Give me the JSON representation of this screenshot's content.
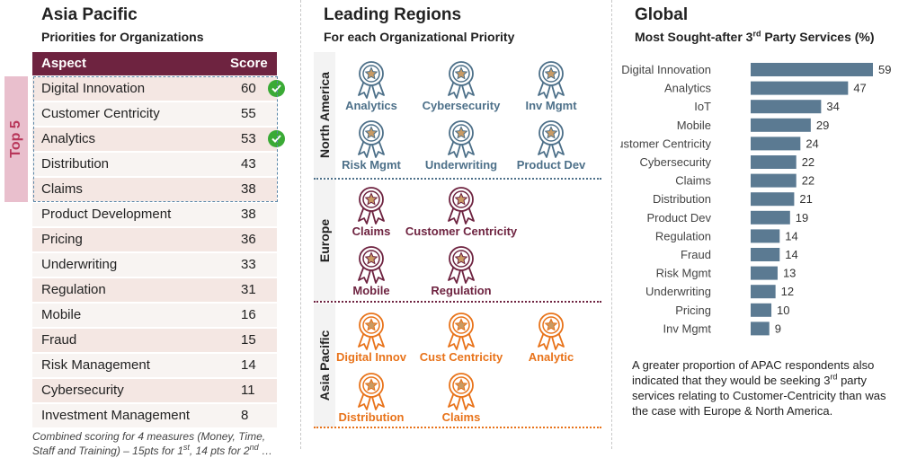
{
  "left": {
    "title": "Asia Pacific",
    "subtitle": "Priorities for Organizations",
    "header_aspect": "Aspect",
    "header_score": "Score",
    "top5_label": "Top 5",
    "rows": [
      {
        "aspect": "Digital Innovation",
        "score": "60",
        "check": true
      },
      {
        "aspect": "Customer Centricity",
        "score": "55",
        "check": false
      },
      {
        "aspect": "Analytics",
        "score": "53",
        "check": true
      },
      {
        "aspect": "Distribution",
        "score": "43",
        "check": false
      },
      {
        "aspect": "Claims",
        "score": "38",
        "check": false
      },
      {
        "aspect": "Product Development",
        "score": "38",
        "check": false
      },
      {
        "aspect": "Pricing",
        "score": "36",
        "check": false
      },
      {
        "aspect": "Underwriting",
        "score": "33",
        "check": false
      },
      {
        "aspect": "Regulation",
        "score": "31",
        "check": false
      },
      {
        "aspect": "Mobile",
        "score": "16",
        "check": false
      },
      {
        "aspect": "Fraud",
        "score": "15",
        "check": false
      },
      {
        "aspect": "Risk Management",
        "score": "14",
        "check": false
      },
      {
        "aspect": "Cybersecurity",
        "score": "11",
        "check": false
      },
      {
        "aspect": "Investment Management",
        "score": "8",
        "check": false
      }
    ],
    "footnote_line1": "Combined scoring for 4 measures (Money, Time,",
    "footnote_line2a": "Staff and Training) – 15pts for 1",
    "footnote_sup1": "st",
    "footnote_line2b": ", 14 pts for 2",
    "footnote_sup2": "nd",
    "footnote_line2c": " …"
  },
  "middle": {
    "title": "Leading Regions",
    "subtitle": "For each Organizational Priority",
    "regions": [
      {
        "name": "North America",
        "color": "#4d7089",
        "awards": [
          "Analytics",
          "Cybersecurity",
          "Inv Mgmt",
          "Risk Mgmt",
          "Underwriting",
          "Product Dev"
        ]
      },
      {
        "name": "Europe",
        "color": "#6e2340",
        "awards": [
          "Claims",
          "Customer Centricity",
          "Mobile",
          "Regulation"
        ]
      },
      {
        "name": "Asia Pacific",
        "color": "#e8731a",
        "awards": [
          "Digital Innov",
          "Cust Centricity",
          "Analytic",
          "Distribution",
          "Claims"
        ]
      }
    ]
  },
  "right": {
    "title": "Global",
    "subtitle_a": "Most Sought-after 3",
    "subtitle_sup": "rd",
    "subtitle_b": " Party Services (%)",
    "note_a": "A greater proportion of APAC respondents also indicated that they would be seeking 3",
    "note_sup": "rd",
    "note_b": " party services relating to Customer-Centricity than was the case with Europe & North America."
  },
  "chart_data": {
    "type": "bar",
    "orientation": "horizontal",
    "title": "Most Sought-after 3rd Party Services (%)",
    "categories": [
      "Digital Innovation",
      "Analytics",
      "IoT",
      "Mobile",
      "Customer Centricity",
      "Cybersecurity",
      "Claims",
      "Distribution",
      "Product Dev",
      "Regulation",
      "Fraud",
      "Risk Mgmt",
      "Underwriting",
      "Pricing",
      "Inv Mgmt"
    ],
    "values": [
      59,
      47,
      34,
      29,
      24,
      22,
      22,
      21,
      19,
      14,
      14,
      13,
      12,
      10,
      9
    ],
    "bar_color": "#5b7a92",
    "data_labels": true,
    "grid": false
  },
  "colors": {
    "table_header": "#6e2340",
    "row_odd": "#f4e7e3",
    "row_even": "#f8f4f2",
    "top5_tab": "#e9bfcd",
    "check": "#3aaa35"
  }
}
